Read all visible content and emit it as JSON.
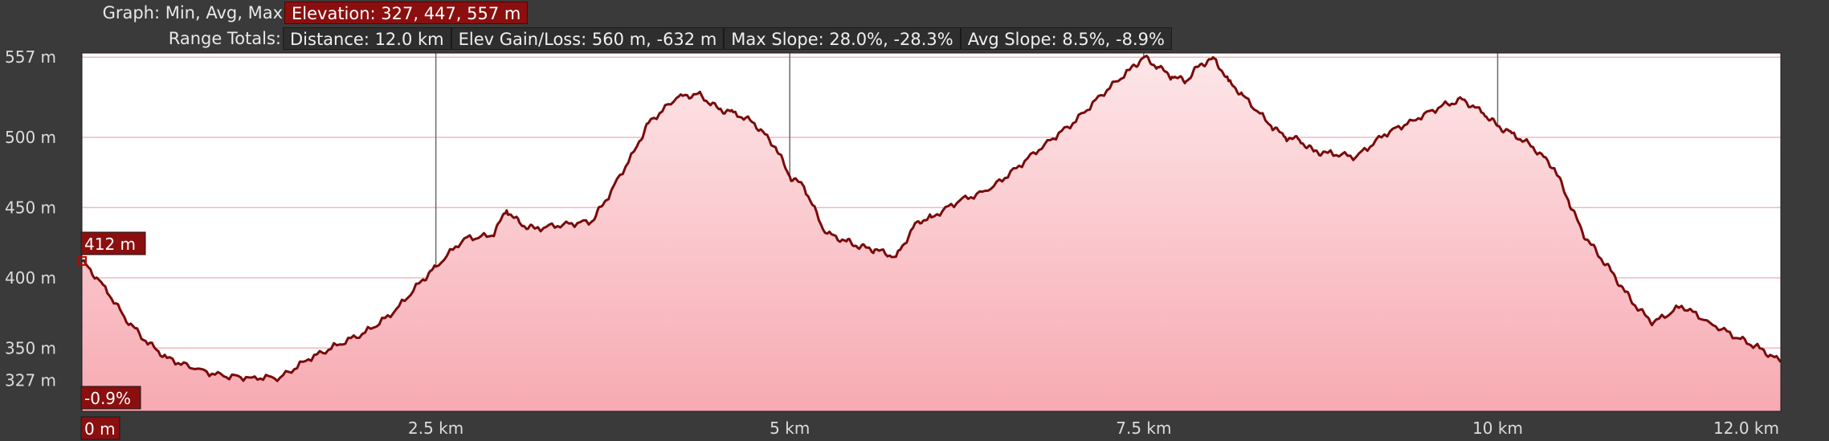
{
  "header": {
    "graph_label": "Graph: Min, Avg, Max",
    "elevation_stat": "Elevation: 327, 447, 557 m",
    "range_label": "Range Totals:",
    "distance": "Distance: 12.0 km",
    "elev_gain_loss": "Elev Gain/Loss: 560 m, -632 m",
    "max_slope": "Max Slope: 28.0%, -28.3%",
    "avg_slope": "Avg Slope: 8.5%, -8.9%"
  },
  "cursor": {
    "elevation_tag": "412 m",
    "slope_tag": "-0.9%",
    "distance_tag": "0 m"
  },
  "colors": {
    "background": "#3a3a3a",
    "plot_bg": "#ffffff",
    "line": "#7a0a0a",
    "fill_top": "#fde6e8",
    "fill_bottom": "#f7aab2",
    "grid_h": "#f2b8be",
    "grid_v": "#6a6a6a",
    "accent": "#8b0f0f"
  },
  "chart_data": {
    "type": "area",
    "xlabel": "",
    "ylabel": "",
    "xlim": [
      0,
      12.0
    ],
    "ylim": [
      305,
      560
    ],
    "x_ticks": [
      {
        "value": 2.5,
        "label": "2.5 km"
      },
      {
        "value": 5.0,
        "label": "5 km"
      },
      {
        "value": 7.5,
        "label": "7.5 km"
      },
      {
        "value": 10.0,
        "label": "10 km"
      },
      {
        "value": 12.0,
        "label": "12.0 km"
      }
    ],
    "y_ticks": [
      {
        "value": 557,
        "label": "557 m"
      },
      {
        "value": 500,
        "label": "500 m"
      },
      {
        "value": 450,
        "label": "450 m"
      },
      {
        "value": 400,
        "label": "400 m"
      },
      {
        "value": 350,
        "label": "350 m"
      },
      {
        "value": 327,
        "label": "327 m"
      }
    ],
    "series": [
      {
        "x": [
          0,
          0.15,
          0.3,
          0.45,
          0.6,
          0.8,
          1.0,
          1.2,
          1.4,
          1.6,
          1.8,
          2.0,
          2.2,
          2.4,
          2.5,
          2.7,
          2.9,
          3.0,
          3.1,
          3.2,
          3.4,
          3.6,
          3.7,
          3.9,
          4.0,
          4.2,
          4.35,
          4.5,
          4.6,
          4.75,
          4.9,
          5.0,
          5.1,
          5.25,
          5.4,
          5.5,
          5.6,
          5.75,
          5.9,
          6.0,
          6.2,
          6.4,
          6.6,
          6.8,
          7.0,
          7.2,
          7.4,
          7.5,
          7.6,
          7.7,
          7.8,
          7.9,
          8.0,
          8.1,
          8.2,
          8.4,
          8.5,
          8.6,
          8.7,
          8.8,
          9.0,
          9.2,
          9.4,
          9.6,
          9.75,
          9.9,
          10.0,
          10.1,
          10.25,
          10.4,
          10.5,
          10.6,
          10.7,
          10.8,
          10.9,
          11.0,
          11.1,
          11.3,
          11.5,
          11.7,
          11.85,
          12.0
        ],
        "y": [
          412,
          395,
          372,
          355,
          343,
          335,
          330,
          329,
          329,
          342,
          352,
          361,
          375,
          398,
          408,
          428,
          430,
          448,
          438,
          435,
          438,
          440,
          455,
          490,
          510,
          528,
          531,
          520,
          518,
          510,
          493,
          472,
          465,
          432,
          426,
          422,
          420,
          415,
          440,
          443,
          455,
          462,
          478,
          495,
          510,
          530,
          548,
          557,
          550,
          543,
          540,
          552,
          556,
          540,
          530,
          508,
          500,
          498,
          490,
          489,
          486,
          502,
          512,
          522,
          527,
          517,
          508,
          503,
          493,
          478,
          455,
          432,
          418,
          405,
          390,
          377,
          368,
          380,
          368,
          357,
          350,
          340
        ]
      }
    ]
  }
}
